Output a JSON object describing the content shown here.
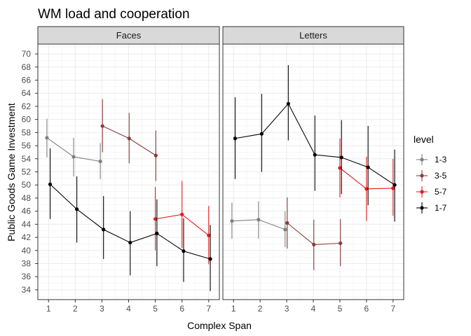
{
  "chart_data": {
    "type": "line",
    "title": "WM load and cooperation",
    "xlabel": "Complex Span",
    "ylabel": "Public Goods Game Investment",
    "ylim": [
      32.5,
      71.5
    ],
    "xlim": [
      0.6,
      7.4
    ],
    "x_ticks": [
      "1",
      "2",
      "3",
      "4",
      "5",
      "6",
      "7"
    ],
    "y_ticks": [
      "34",
      "36",
      "38",
      "40",
      "42",
      "44",
      "46",
      "48",
      "50",
      "52",
      "54",
      "56",
      "58",
      "60",
      "62",
      "64",
      "66",
      "68",
      "70"
    ],
    "grid": true,
    "legend": {
      "title": "level",
      "position": "right",
      "entries": [
        {
          "name": "1-3",
          "color": "#808080"
        },
        {
          "name": "3-5",
          "color": "#8b3a3a"
        },
        {
          "name": "5-7",
          "color": "#e31a1c"
        },
        {
          "name": "1-7",
          "color": "#000000"
        }
      ]
    },
    "facets": [
      {
        "name": "Faces",
        "series": [
          {
            "name": "1-3",
            "color": "#808080",
            "points": [
              {
                "x": 1,
                "y": 57.2,
                "lo": 54.2,
                "hi": 60.1
              },
              {
                "x": 2,
                "y": 54.3,
                "lo": 51.3,
                "hi": 57.2
              },
              {
                "x": 3,
                "y": 53.6,
                "lo": 50.9,
                "hi": 56.4
              }
            ]
          },
          {
            "name": "3-5",
            "color": "#8b3a3a",
            "points": [
              {
                "x": 3,
                "y": 59.0,
                "lo": 55.0,
                "hi": 63.1
              },
              {
                "x": 4,
                "y": 57.1,
                "lo": 53.3,
                "hi": 61.0
              },
              {
                "x": 5,
                "y": 54.5,
                "lo": 50.6,
                "hi": 58.3
              }
            ]
          },
          {
            "name": "5-7",
            "color": "#e31a1c",
            "points": [
              {
                "x": 5,
                "y": 44.8,
                "lo": 40.0,
                "hi": 49.7
              },
              {
                "x": 6,
                "y": 45.5,
                "lo": 40.4,
                "hi": 50.6
              },
              {
                "x": 7,
                "y": 42.3,
                "lo": 37.9,
                "hi": 46.8
              }
            ]
          },
          {
            "name": "1-7",
            "color": "#000000",
            "points": [
              {
                "x": 1,
                "y": 50.1,
                "lo": 44.8,
                "hi": 55.6
              },
              {
                "x": 2,
                "y": 46.3,
                "lo": 41.2,
                "hi": 51.3
              },
              {
                "x": 3,
                "y": 43.2,
                "lo": 38.7,
                "hi": 48.3
              },
              {
                "x": 4,
                "y": 41.2,
                "lo": 36.2,
                "hi": 46.0
              },
              {
                "x": 5,
                "y": 42.6,
                "lo": 37.6,
                "hi": 47.8
              },
              {
                "x": 6,
                "y": 39.9,
                "lo": 35.2,
                "hi": 44.9
              },
              {
                "x": 7,
                "y": 38.7,
                "lo": 33.8,
                "hi": 43.9
              }
            ]
          }
        ]
      },
      {
        "name": "Letters",
        "series": [
          {
            "name": "1-3",
            "color": "#808080",
            "points": [
              {
                "x": 1,
                "y": 44.5,
                "lo": 41.8,
                "hi": 47.3
              },
              {
                "x": 2,
                "y": 44.7,
                "lo": 41.8,
                "hi": 47.5
              },
              {
                "x": 3,
                "y": 43.2,
                "lo": 40.5,
                "hi": 46.0
              }
            ]
          },
          {
            "name": "3-5",
            "color": "#8b3a3a",
            "points": [
              {
                "x": 3,
                "y": 44.2,
                "lo": 40.3,
                "hi": 48.1
              },
              {
                "x": 4,
                "y": 40.9,
                "lo": 37.0,
                "hi": 44.7
              },
              {
                "x": 5,
                "y": 41.1,
                "lo": 37.6,
                "hi": 44.8
              }
            ]
          },
          {
            "name": "5-7",
            "color": "#e31a1c",
            "points": [
              {
                "x": 5,
                "y": 52.6,
                "lo": 48.1,
                "hi": 57.1
              },
              {
                "x": 6,
                "y": 49.4,
                "lo": 44.5,
                "hi": 54.3
              },
              {
                "x": 7,
                "y": 49.5,
                "lo": 45.3,
                "hi": 54.0
              }
            ]
          },
          {
            "name": "1-7",
            "color": "#000000",
            "points": [
              {
                "x": 1,
                "y": 57.1,
                "lo": 50.9,
                "hi": 63.4
              },
              {
                "x": 2,
                "y": 57.8,
                "lo": 52.0,
                "hi": 63.9
              },
              {
                "x": 3,
                "y": 62.4,
                "lo": 56.8,
                "hi": 68.3
              },
              {
                "x": 4,
                "y": 54.6,
                "lo": 49.1,
                "hi": 60.6
              },
              {
                "x": 5,
                "y": 54.2,
                "lo": 48.6,
                "hi": 59.9
              },
              {
                "x": 6,
                "y": 52.7,
                "lo": 46.9,
                "hi": 59.0
              },
              {
                "x": 7,
                "y": 50.0,
                "lo": 44.4,
                "hi": 55.4
              }
            ]
          }
        ]
      }
    ]
  }
}
